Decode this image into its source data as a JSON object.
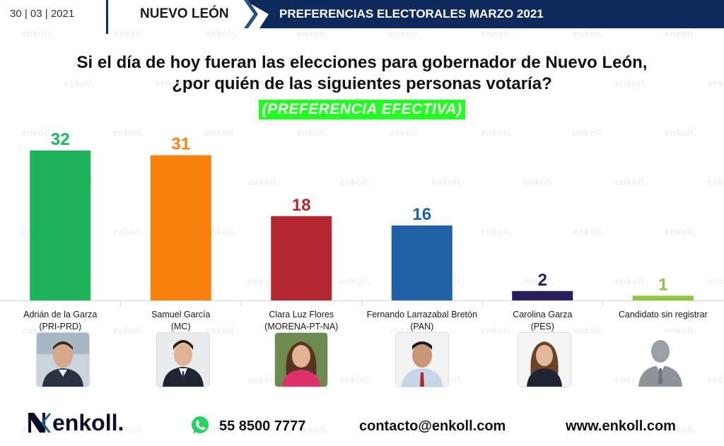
{
  "header": {
    "date": "30 | 03 | 2021",
    "state": "NUEVO LEÓN",
    "banner": "PREFERENCIAS ELECTORALES MARZO 2021",
    "banner_color": "#0e2a5c"
  },
  "watermark": "enkoll.",
  "question": {
    "line1": "Si el día de hoy fueran las elecciones para gobernador de Nuevo León,",
    "line2": "¿por quién de las siguientes personas votaría?",
    "subtitle": "(PREFERENCIA EFECTIVA)"
  },
  "chart_data": {
    "type": "bar",
    "categories": [
      {
        "name": "Adrián de la Garza",
        "party": "(PRI-PRD)"
      },
      {
        "name": "Samuel García",
        "party": "(MC)"
      },
      {
        "name": "Clara Luz Flores",
        "party": "(MORENA-PT-NA)"
      },
      {
        "name": "Fernando Larrazabal Bretón",
        "party": "(PAN)"
      },
      {
        "name": "Carolina Garza",
        "party": "(PES)"
      },
      {
        "name": "Candidato sin registrar",
        "party": ""
      }
    ],
    "values": [
      32,
      31,
      18,
      16,
      2,
      1
    ],
    "colors": [
      "#1db35a",
      "#f9820f",
      "#b52730",
      "#1f62a8",
      "#2a1d5c",
      "#8dc63f"
    ],
    "ylim": [
      0,
      32
    ]
  },
  "footer": {
    "logo": "enkoll.",
    "phone": "55 8500 7777",
    "email": "contacto@enkoll.com",
    "web": "www.enkoll.com"
  }
}
